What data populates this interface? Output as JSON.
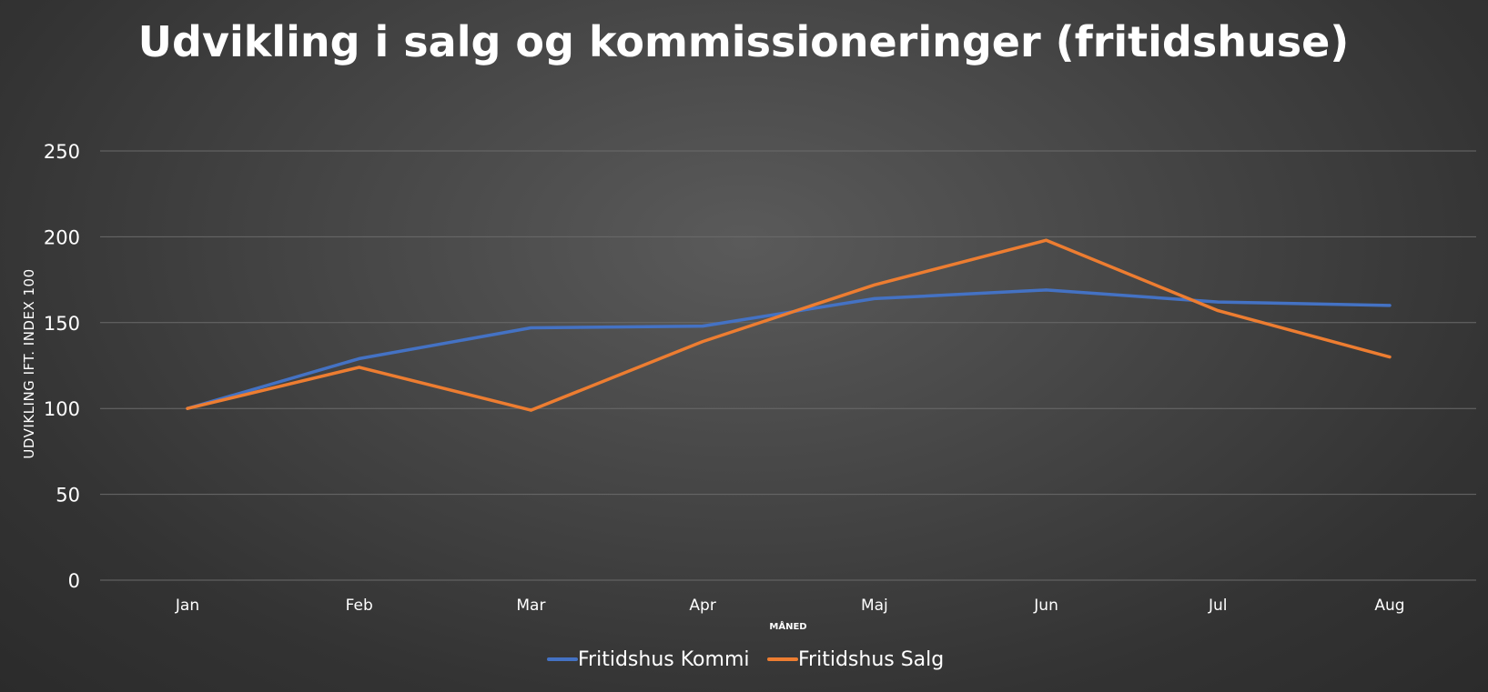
{
  "chart_data": {
    "type": "line",
    "title": "Udvikling i salg og kommissioneringer (fritidshuse)",
    "xlabel": "MÅNED",
    "ylabel": "UDVIKLING IFT. INDEX 100",
    "categories": [
      "Jan",
      "Feb",
      "Mar",
      "Apr",
      "Maj",
      "Jun",
      "Jul",
      "Aug"
    ],
    "ylim": [
      0,
      250
    ],
    "yticks": [
      "0",
      "50",
      "100",
      "150",
      "200",
      "250"
    ],
    "grid": true,
    "legend_position": "bottom",
    "series": [
      {
        "name": "Fritidshus Kommi",
        "color": "#4472c4",
        "values": [
          100,
          129,
          147,
          148,
          164,
          169,
          162,
          160
        ]
      },
      {
        "name": "Fritidshus Salg",
        "color": "#ed7d31",
        "values": [
          100,
          124,
          99,
          139,
          172,
          198,
          157,
          130
        ]
      }
    ]
  }
}
